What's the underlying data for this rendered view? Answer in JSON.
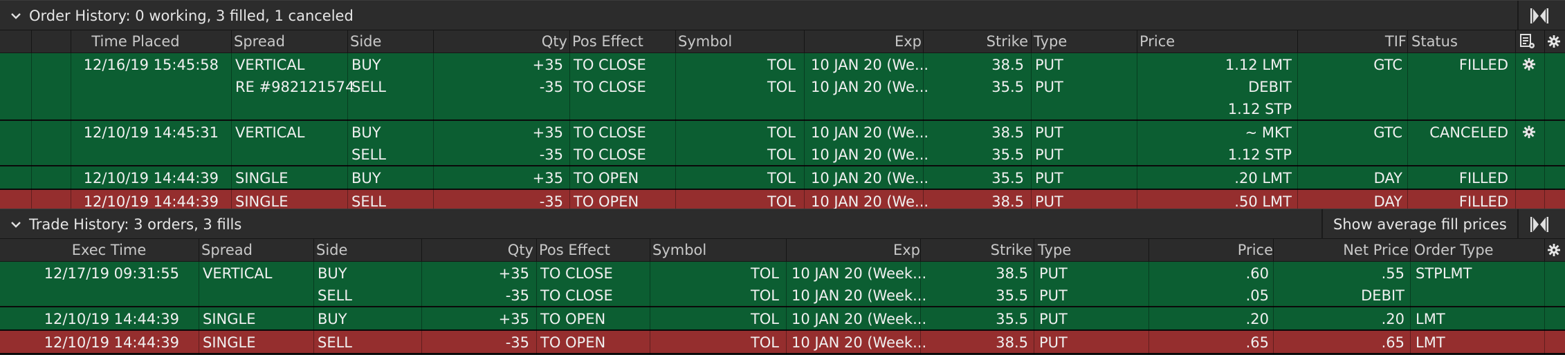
{
  "order_history": {
    "title": "Order History: 0 working, 3 filled, 1 canceled",
    "columns": [
      "Time Placed",
      "Spread",
      "Side",
      "Qty",
      "Pos Effect",
      "Symbol",
      "Exp",
      "Strike",
      "Type",
      "Price",
      "TIF",
      "Status"
    ],
    "rows": [
      {
        "status": "green",
        "lines": [
          {
            "time": "12/16/19 15:45:58",
            "spread": "VERTICAL",
            "side": "BUY",
            "qty": "+35",
            "pos": "TO CLOSE",
            "symbol": "TOL",
            "exp": "10 JAN 20 (We...",
            "strike": "38.5",
            "type": "PUT",
            "price": "1.12 LMT",
            "tif": "GTC",
            "stat": "FILLED",
            "gear": true
          },
          {
            "time": "",
            "spread": "RE #982121574",
            "side": "SELL",
            "qty": "-35",
            "pos": "TO CLOSE",
            "symbol": "TOL",
            "exp": "10 JAN 20 (We...",
            "strike": "35.5",
            "type": "PUT",
            "price": "DEBIT",
            "tif": "",
            "stat": "",
            "gear": false
          },
          {
            "time": "",
            "spread": "",
            "side": "",
            "qty": "",
            "pos": "",
            "symbol": "",
            "exp": "",
            "strike": "",
            "type": "",
            "price": "1.12 STP",
            "tif": "",
            "stat": "",
            "gear": false
          }
        ]
      },
      {
        "status": "green",
        "lines": [
          {
            "time": "12/10/19 14:45:31",
            "spread": "VERTICAL",
            "side": "BUY",
            "qty": "+35",
            "pos": "TO CLOSE",
            "symbol": "TOL",
            "exp": "10 JAN 20 (We...",
            "strike": "38.5",
            "type": "PUT",
            "price": "~ MKT",
            "tif": "GTC",
            "stat": "CANCELED",
            "gear": true
          },
          {
            "time": "",
            "spread": "",
            "side": "SELL",
            "qty": "-35",
            "pos": "TO CLOSE",
            "symbol": "TOL",
            "exp": "10 JAN 20 (We...",
            "strike": "35.5",
            "type": "PUT",
            "price": "1.12 STP",
            "tif": "",
            "stat": "",
            "gear": false
          }
        ]
      },
      {
        "status": "green",
        "lines": [
          {
            "time": "12/10/19 14:44:39",
            "spread": "SINGLE",
            "side": "BUY",
            "qty": "+35",
            "pos": "TO OPEN",
            "symbol": "TOL",
            "exp": "10 JAN 20 (We...",
            "strike": "35.5",
            "type": "PUT",
            "price": ".20 LMT",
            "tif": "DAY",
            "stat": "FILLED",
            "gear": false
          }
        ]
      },
      {
        "status": "red",
        "lines": [
          {
            "time": "12/10/19 14:44:39",
            "spread": "SINGLE",
            "side": "SELL",
            "qty": "-35",
            "pos": "TO OPEN",
            "symbol": "TOL",
            "exp": "10 JAN 20 (We...",
            "strike": "38.5",
            "type": "PUT",
            "price": ".50 LMT",
            "tif": "DAY",
            "stat": "FILLED",
            "gear": false
          }
        ]
      }
    ]
  },
  "trade_history": {
    "title": "Trade History: 3 orders, 3 fills",
    "avg_button": "Show average fill prices",
    "columns": [
      "Exec Time",
      "Spread",
      "Side",
      "Qty",
      "Pos Effect",
      "Symbol",
      "Exp",
      "Strike",
      "Type",
      "Price",
      "Net Price",
      "Order Type"
    ],
    "rows": [
      {
        "status": "green",
        "lines": [
          {
            "time": "12/17/19 09:31:55",
            "spread": "VERTICAL",
            "side": "BUY",
            "qty": "+35",
            "pos": "TO CLOSE",
            "symbol": "TOL",
            "exp": "10 JAN 20 (Week...",
            "strike": "38.5",
            "type": "PUT",
            "price": ".60",
            "net": ".55",
            "otype": "STPLMT"
          },
          {
            "time": "",
            "spread": "",
            "side": "SELL",
            "qty": "-35",
            "pos": "TO CLOSE",
            "symbol": "TOL",
            "exp": "10 JAN 20 (Week...",
            "strike": "35.5",
            "type": "PUT",
            "price": ".05",
            "net": "DEBIT",
            "otype": ""
          }
        ]
      },
      {
        "status": "green",
        "lines": [
          {
            "time": "12/10/19 14:44:39",
            "spread": "SINGLE",
            "side": "BUY",
            "qty": "+35",
            "pos": "TO OPEN",
            "symbol": "TOL",
            "exp": "10 JAN 20 (Week...",
            "strike": "35.5",
            "type": "PUT",
            "price": ".20",
            "net": ".20",
            "otype": "LMT"
          }
        ]
      },
      {
        "status": "red",
        "lines": [
          {
            "time": "12/10/19 14:44:39",
            "spread": "SINGLE",
            "side": "SELL",
            "qty": "-35",
            "pos": "TO OPEN",
            "symbol": "TOL",
            "exp": "10 JAN 20 (Week...",
            "strike": "38.5",
            "type": "PUT",
            "price": ".65",
            "net": ".65",
            "otype": "LMT"
          }
        ]
      }
    ]
  },
  "colors": {
    "filled_row": "#0c5e32",
    "sell_row": "#952e2e",
    "header_bg": "#2c2c2c"
  },
  "icons": [
    "chevron-down-icon",
    "collapse-panel-icon",
    "gear-icon",
    "customize-columns-icon"
  ]
}
